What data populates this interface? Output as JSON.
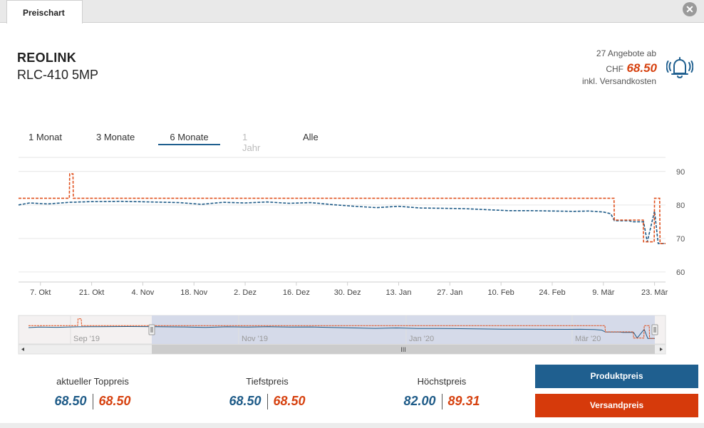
{
  "tabs": {
    "active_label": "Preischart",
    "close_glyph": "✕"
  },
  "product": {
    "brand": "REOLINK",
    "model": "RLC-410 5MP"
  },
  "offer_summary": {
    "offers_text": "27 Angebote ab",
    "currency": "CHF",
    "price": "68.50",
    "shipping_note": "inkl. Versandkosten"
  },
  "range_tabs": [
    {
      "label": "1 Monat",
      "state": "normal"
    },
    {
      "label": "3 Monate",
      "state": "normal"
    },
    {
      "label": "6 Monate",
      "state": "active"
    },
    {
      "label": "1 Jahr",
      "state": "disabled"
    },
    {
      "label": "Alle",
      "state": "normal"
    }
  ],
  "colors": {
    "product_price": "#1d5a87",
    "shipping_price": "#e0501d",
    "button_blue": "#1f5f8f",
    "button_red": "#d63a0b"
  },
  "chart_data": {
    "type": "line",
    "title": "",
    "xlabel": "",
    "ylabel": "",
    "x_domain": [
      0,
      177
    ],
    "ylim": [
      57,
      94
    ],
    "yticks": [
      60,
      70,
      80,
      90
    ],
    "xticks": [
      {
        "label": "7. Okt",
        "day": 6
      },
      {
        "label": "21. Okt",
        "day": 20
      },
      {
        "label": "4. Nov",
        "day": 34
      },
      {
        "label": "18. Nov",
        "day": 48
      },
      {
        "label": "2. Dez",
        "day": 62
      },
      {
        "label": "16. Dez",
        "day": 76
      },
      {
        "label": "30. Dez",
        "day": 90
      },
      {
        "label": "13. Jan",
        "day": 104
      },
      {
        "label": "27. Jan",
        "day": 118
      },
      {
        "label": "10. Feb",
        "day": 132
      },
      {
        "label": "24. Feb",
        "day": 146
      },
      {
        "label": "9. Mär",
        "day": 160
      },
      {
        "label": "23. Mär",
        "day": 174
      }
    ],
    "series": [
      {
        "name": "Produktpreis",
        "x": [
          0,
          3,
          8,
          14,
          20,
          28,
          36,
          44,
          50,
          56,
          62,
          68,
          74,
          80,
          86,
          92,
          98,
          104,
          110,
          116,
          122,
          128,
          134,
          140,
          146,
          152,
          156,
          160,
          162,
          163,
          167,
          168,
          171,
          172,
          174,
          175,
          177
        ],
        "y": [
          80.0,
          80.6,
          80.3,
          80.8,
          81.0,
          81.1,
          80.9,
          80.7,
          80.2,
          80.8,
          80.6,
          80.9,
          80.5,
          80.7,
          80.1,
          79.6,
          79.2,
          79.6,
          79.1,
          79.0,
          78.9,
          78.6,
          78.3,
          78.3,
          78.2,
          78.1,
          78.2,
          77.9,
          77.4,
          75.3,
          75.3,
          75.0,
          75.0,
          69.0,
          78.2,
          68.5,
          68.5
        ]
      },
      {
        "name": "Versandpreis",
        "x": [
          0,
          13.9,
          14,
          14.9,
          15,
          162.9,
          163,
          170.9,
          171,
          173.9,
          174,
          175.4,
          175.5,
          177
        ],
        "y": [
          82.0,
          82.0,
          89.3,
          89.3,
          82.0,
          82.0,
          75.5,
          75.5,
          69.0,
          69.0,
          82.0,
          82.0,
          68.5,
          68.5
        ]
      }
    ],
    "navigator": {
      "labels": [
        "Sep '19",
        "Nov '19",
        "Jan '20",
        "Mär '20"
      ],
      "scroll_handle": "III"
    }
  },
  "stats": [
    {
      "label": "aktueller Toppreis",
      "product": "68.50",
      "shipping": "68.50"
    },
    {
      "label": "Tiefstpreis",
      "product": "68.50",
      "shipping": "68.50"
    },
    {
      "label": "Höchstpreis",
      "product": "82.00",
      "shipping": "89.31"
    }
  ],
  "buttons": {
    "product_price": "Produktpreis",
    "shipping_price": "Versandpreis"
  }
}
